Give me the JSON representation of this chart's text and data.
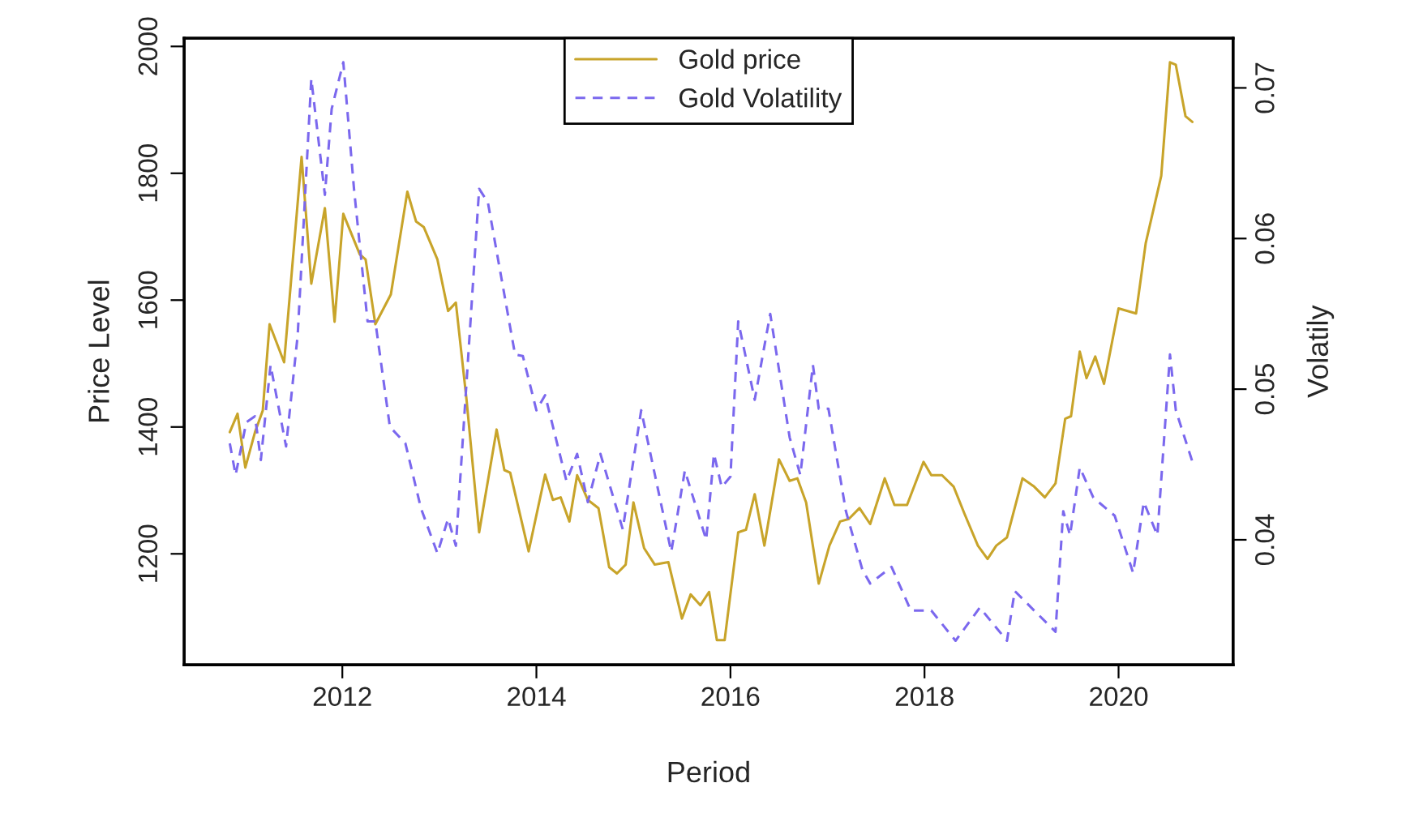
{
  "chart_data": {
    "type": "line",
    "xlabel": "Period",
    "ylabel": "Price Level",
    "y2label": "Volatily",
    "xlim": [
      2010.37,
      2021.18
    ],
    "xticks": [
      2012,
      2014,
      2016,
      2018,
      2020
    ],
    "ylim": [
      1025,
      2013
    ],
    "yticks": [
      1200,
      1400,
      1600,
      1800,
      2000
    ],
    "y2lim": [
      0.0317,
      0.0733
    ],
    "y2ticks": [
      0.04,
      0.05,
      0.06,
      0.07
    ],
    "legend": "top",
    "grid": false,
    "series": [
      {
        "name": "Gold price",
        "color": "#c8a42a",
        "line_style": "solid",
        "x": [
          2010.84,
          2010.92,
          2011.0,
          2011.1,
          2011.18,
          2011.25,
          2011.4,
          2011.58,
          2011.68,
          2011.82,
          2011.92,
          2012.01,
          2012.18,
          2012.24,
          2012.34,
          2012.5,
          2012.67,
          2012.76,
          2012.84,
          2012.98,
          2013.09,
          2013.17,
          2013.28,
          2013.41,
          2013.59,
          2013.67,
          2013.73,
          2013.92,
          2014.09,
          2014.17,
          2014.25,
          2014.34,
          2014.42,
          2014.53,
          2014.64,
          2014.75,
          2014.83,
          2014.92,
          2015.0,
          2015.11,
          2015.22,
          2015.36,
          2015.5,
          2015.59,
          2015.69,
          2015.78,
          2015.86,
          2015.94,
          2016.08,
          2016.16,
          2016.25,
          2016.35,
          2016.5,
          2016.61,
          2016.69,
          2016.78,
          2016.91,
          2017.02,
          2017.13,
          2017.22,
          2017.33,
          2017.44,
          2017.59,
          2017.69,
          2017.82,
          2017.99,
          2018.07,
          2018.18,
          2018.3,
          2018.41,
          2018.55,
          2018.65,
          2018.74,
          2018.85,
          2019.01,
          2019.13,
          2019.24,
          2019.35,
          2019.45,
          2019.51,
          2019.6,
          2019.67,
          2019.76,
          2019.85,
          2020.0,
          2020.18,
          2020.28,
          2020.44,
          2020.53,
          2020.59,
          2020.69,
          2020.76
        ],
        "values": [
          1392,
          1421,
          1336,
          1392,
          1426,
          1562,
          1502,
          1826,
          1626,
          1745,
          1566,
          1736,
          1672,
          1664,
          1562,
          1609,
          1771,
          1724,
          1715,
          1664,
          1583,
          1596,
          1443,
          1234,
          1396,
          1332,
          1328,
          1204,
          1325,
          1285,
          1289,
          1251,
          1324,
          1285,
          1272,
          1179,
          1169,
          1183,
          1281,
          1209,
          1183,
          1187,
          1098,
          1136,
          1119,
          1140,
          1064,
          1064,
          1234,
          1238,
          1294,
          1213,
          1349,
          1315,
          1319,
          1281,
          1153,
          1213,
          1251,
          1255,
          1272,
          1247,
          1319,
          1277,
          1277,
          1345,
          1324,
          1324,
          1306,
          1264,
          1213,
          1192,
          1213,
          1226,
          1319,
          1306,
          1289,
          1311,
          1413,
          1417,
          1519,
          1477,
          1511,
          1468,
          1587,
          1579,
          1690,
          1796,
          1975,
          1971,
          1890,
          1881
        ]
      },
      {
        "name": "Gold Volatility",
        "color": "#7b68ee",
        "line_style": "dashed",
        "axis": "y2",
        "x": [
          2010.84,
          2010.9,
          2011.01,
          2011.1,
          2011.16,
          2011.26,
          2011.42,
          2011.54,
          2011.68,
          2011.82,
          2011.89,
          2012.01,
          2012.12,
          2012.26,
          2012.34,
          2012.49,
          2012.65,
          2012.81,
          2012.98,
          2013.09,
          2013.17,
          2013.41,
          2013.5,
          2013.78,
          2013.86,
          2014.0,
          2014.09,
          2014.31,
          2014.42,
          2014.53,
          2014.66,
          2014.89,
          2015.08,
          2015.39,
          2015.53,
          2015.75,
          2015.83,
          2015.91,
          2016.0,
          2016.08,
          2016.25,
          2016.41,
          2016.61,
          2016.72,
          2016.85,
          2016.91,
          2017.01,
          2017.19,
          2017.36,
          2017.44,
          2017.66,
          2017.86,
          2018.07,
          2018.32,
          2018.57,
          2018.85,
          2018.93,
          2019.1,
          2019.35,
          2019.43,
          2019.5,
          2019.6,
          2019.74,
          2019.96,
          2020.15,
          2020.26,
          2020.4,
          2020.53,
          2020.59,
          2020.76
        ],
        "values": [
          0.0464,
          0.0443,
          0.0478,
          0.0482,
          0.0453,
          0.0516,
          0.0462,
          0.0536,
          0.0706,
          0.0629,
          0.0686,
          0.0717,
          0.0633,
          0.0545,
          0.0545,
          0.0475,
          0.0464,
          0.0421,
          0.0391,
          0.0414,
          0.0396,
          0.0633,
          0.0624,
          0.0523,
          0.0522,
          0.0486,
          0.0496,
          0.0439,
          0.0457,
          0.0425,
          0.0457,
          0.0407,
          0.0486,
          0.0392,
          0.0446,
          0.04,
          0.0457,
          0.0435,
          0.0442,
          0.0545,
          0.0493,
          0.055,
          0.0468,
          0.0443,
          0.0516,
          0.0487,
          0.0487,
          0.0419,
          0.038,
          0.0371,
          0.0382,
          0.0353,
          0.0353,
          0.0333,
          0.0355,
          0.0333,
          0.0366,
          0.0355,
          0.0339,
          0.0419,
          0.0403,
          0.0448,
          0.0428,
          0.0416,
          0.0378,
          0.0425,
          0.0403,
          0.0523,
          0.0486,
          0.0452
        ]
      }
    ]
  }
}
